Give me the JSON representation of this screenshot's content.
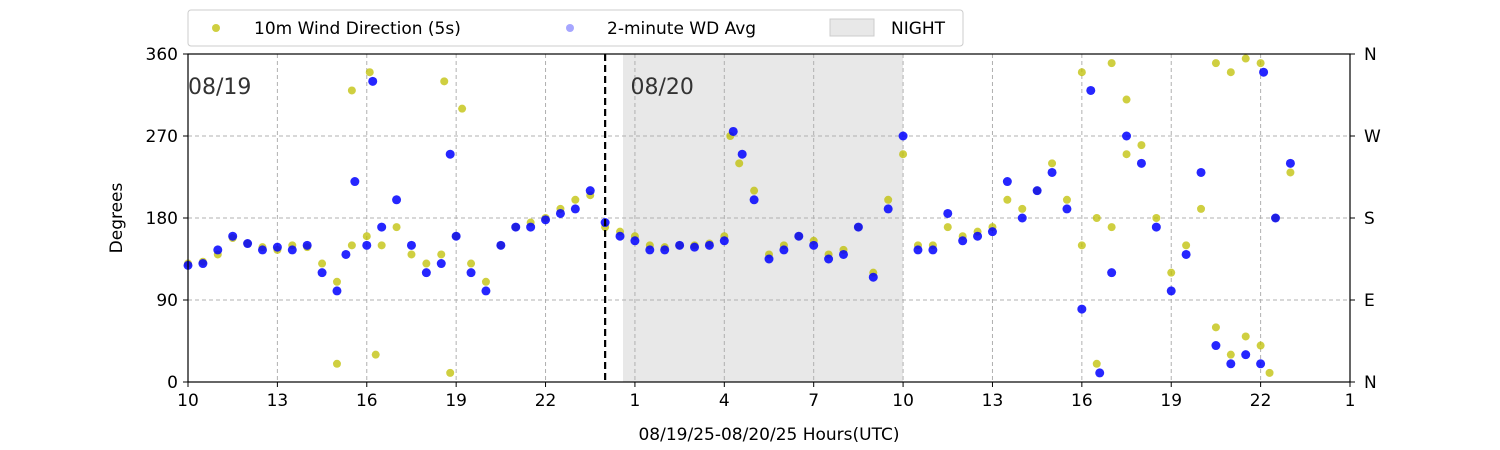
{
  "chart_data": {
    "type": "scatter",
    "xlabel": "08/19/25-08/20/25  Hours(UTC)",
    "ylabel": "Degrees",
    "xlim": [
      10,
      49
    ],
    "ylim": [
      0,
      360
    ],
    "x_ticks": [
      {
        "value": 10,
        "label": "10"
      },
      {
        "value": 13,
        "label": "13"
      },
      {
        "value": 16,
        "label": "16"
      },
      {
        "value": 19,
        "label": "19"
      },
      {
        "value": 22,
        "label": "22"
      },
      {
        "value": 25,
        "label": "1"
      },
      {
        "value": 28,
        "label": "4"
      },
      {
        "value": 31,
        "label": "7"
      },
      {
        "value": 34,
        "label": "10"
      },
      {
        "value": 37,
        "label": "13"
      },
      {
        "value": 40,
        "label": "16"
      },
      {
        "value": 43,
        "label": "19"
      },
      {
        "value": 46,
        "label": "22"
      },
      {
        "value": 49,
        "label": "1"
      }
    ],
    "y_ticks": [
      0,
      90,
      180,
      270,
      360
    ],
    "y2_ticks": [
      {
        "value": 0,
        "label": "N"
      },
      {
        "value": 90,
        "label": "E"
      },
      {
        "value": 180,
        "label": "S"
      },
      {
        "value": 270,
        "label": "W"
      },
      {
        "value": 360,
        "label": "N"
      }
    ],
    "grid": true,
    "legend_position": "top-left-outside",
    "legend": [
      {
        "label": "10m Wind Direction (5s)",
        "kind": "marker",
        "color": "#bfbf00"
      },
      {
        "label": "2-minute WD Avg",
        "kind": "marker",
        "color": "#0000ff"
      },
      {
        "label": "NIGHT",
        "kind": "patch",
        "color": "#e8e8e8"
      }
    ],
    "night_span": [
      24.6,
      34
    ],
    "day_divider_x": 24,
    "annotations": [
      {
        "text": "08/19",
        "x": 10,
        "y": 325
      },
      {
        "text": "08/20",
        "x": 24.85,
        "y": 325
      }
    ],
    "series": [
      {
        "name": "10m Wind Direction (5s)",
        "color": "#bfbf00",
        "points": [
          [
            10.0,
            130
          ],
          [
            10.5,
            132
          ],
          [
            11.0,
            140
          ],
          [
            11.5,
            158
          ],
          [
            12.0,
            152
          ],
          [
            12.5,
            148
          ],
          [
            13.0,
            145
          ],
          [
            13.5,
            150
          ],
          [
            14.0,
            148
          ],
          [
            14.5,
            130
          ],
          [
            15.0,
            110
          ],
          [
            15.5,
            150
          ],
          [
            16.0,
            160
          ],
          [
            16.5,
            150
          ],
          [
            17.0,
            170
          ],
          [
            17.5,
            140
          ],
          [
            18.0,
            130
          ],
          [
            18.5,
            140
          ],
          [
            19.0,
            160
          ],
          [
            19.5,
            130
          ],
          [
            20.0,
            110
          ],
          [
            20.5,
            150
          ],
          [
            21.0,
            170
          ],
          [
            21.5,
            175
          ],
          [
            22.0,
            180
          ],
          [
            22.5,
            190
          ],
          [
            23.0,
            200
          ],
          [
            23.5,
            205
          ],
          [
            24.0,
            170
          ],
          [
            24.5,
            165
          ],
          [
            25.0,
            160
          ],
          [
            25.5,
            150
          ],
          [
            26.0,
            148
          ],
          [
            26.5,
            150
          ],
          [
            27.0,
            150
          ],
          [
            27.5,
            152
          ],
          [
            28.0,
            160
          ],
          [
            28.2,
            270
          ],
          [
            28.5,
            240
          ],
          [
            29.0,
            210
          ],
          [
            29.5,
            140
          ],
          [
            30.0,
            150
          ],
          [
            30.5,
            160
          ],
          [
            31.0,
            155
          ],
          [
            31.5,
            140
          ],
          [
            32.0,
            145
          ],
          [
            32.5,
            170
          ],
          [
            33.0,
            120
          ],
          [
            33.5,
            200
          ],
          [
            34.0,
            250
          ],
          [
            34.5,
            150
          ],
          [
            35.0,
            150
          ],
          [
            35.5,
            170
          ],
          [
            36.0,
            160
          ],
          [
            36.5,
            165
          ],
          [
            37.0,
            170
          ],
          [
            37.5,
            200
          ],
          [
            38.0,
            190
          ],
          [
            38.5,
            210
          ],
          [
            39.0,
            240
          ],
          [
            39.5,
            200
          ],
          [
            40.0,
            150
          ],
          [
            40.5,
            180
          ],
          [
            41.0,
            170
          ],
          [
            41.5,
            250
          ],
          [
            42.0,
            260
          ],
          [
            42.5,
            180
          ],
          [
            43.0,
            120
          ],
          [
            43.5,
            150
          ],
          [
            44.0,
            190
          ],
          [
            44.5,
            60
          ],
          [
            45.0,
            30
          ],
          [
            45.5,
            50
          ],
          [
            46.0,
            40
          ],
          [
            46.5,
            180
          ],
          [
            47.0,
            230
          ],
          [
            15.0,
            20
          ],
          [
            15.5,
            320
          ],
          [
            16.1,
            340
          ],
          [
            16.3,
            30
          ],
          [
            18.6,
            330
          ],
          [
            18.8,
            10
          ],
          [
            19.2,
            300
          ],
          [
            40.0,
            340
          ],
          [
            40.5,
            20
          ],
          [
            41.0,
            350
          ],
          [
            41.5,
            310
          ],
          [
            44.5,
            350
          ],
          [
            45.0,
            340
          ],
          [
            45.5,
            355
          ],
          [
            46.0,
            350
          ],
          [
            46.3,
            10
          ]
        ]
      },
      {
        "name": "2-minute WD Avg",
        "color": "#0000ff",
        "points": [
          [
            10.0,
            128
          ],
          [
            10.5,
            130
          ],
          [
            11.0,
            145
          ],
          [
            11.5,
            160
          ],
          [
            12.0,
            152
          ],
          [
            12.5,
            145
          ],
          [
            13.0,
            148
          ],
          [
            13.5,
            145
          ],
          [
            14.0,
            150
          ],
          [
            14.5,
            120
          ],
          [
            15.0,
            100
          ],
          [
            15.3,
            140
          ],
          [
            15.6,
            220
          ],
          [
            16.0,
            150
          ],
          [
            16.2,
            330
          ],
          [
            16.5,
            170
          ],
          [
            17.0,
            200
          ],
          [
            17.5,
            150
          ],
          [
            18.0,
            120
          ],
          [
            18.5,
            130
          ],
          [
            18.8,
            250
          ],
          [
            19.0,
            160
          ],
          [
            19.5,
            120
          ],
          [
            20.0,
            100
          ],
          [
            20.5,
            150
          ],
          [
            21.0,
            170
          ],
          [
            21.5,
            170
          ],
          [
            22.0,
            178
          ],
          [
            22.5,
            185
          ],
          [
            23.0,
            190
          ],
          [
            23.5,
            210
          ],
          [
            24.0,
            175
          ],
          [
            24.5,
            160
          ],
          [
            25.0,
            155
          ],
          [
            25.5,
            145
          ],
          [
            26.0,
            145
          ],
          [
            26.5,
            150
          ],
          [
            27.0,
            148
          ],
          [
            27.5,
            150
          ],
          [
            28.0,
            155
          ],
          [
            28.3,
            275
          ],
          [
            28.6,
            250
          ],
          [
            29.0,
            200
          ],
          [
            29.5,
            135
          ],
          [
            30.0,
            145
          ],
          [
            30.5,
            160
          ],
          [
            31.0,
            150
          ],
          [
            31.5,
            135
          ],
          [
            32.0,
            140
          ],
          [
            32.5,
            170
          ],
          [
            33.0,
            115
          ],
          [
            33.5,
            190
          ],
          [
            34.0,
            270
          ],
          [
            34.5,
            145
          ],
          [
            35.0,
            145
          ],
          [
            35.5,
            185
          ],
          [
            36.0,
            155
          ],
          [
            36.5,
            160
          ],
          [
            37.0,
            165
          ],
          [
            37.5,
            220
          ],
          [
            38.0,
            180
          ],
          [
            38.5,
            210
          ],
          [
            39.0,
            230
          ],
          [
            39.5,
            190
          ],
          [
            40.0,
            80
          ],
          [
            40.3,
            320
          ],
          [
            40.6,
            10
          ],
          [
            41.0,
            120
          ],
          [
            41.5,
            270
          ],
          [
            42.0,
            240
          ],
          [
            42.5,
            170
          ],
          [
            43.0,
            100
          ],
          [
            43.5,
            140
          ],
          [
            44.0,
            230
          ],
          [
            44.5,
            40
          ],
          [
            45.0,
            20
          ],
          [
            45.5,
            30
          ],
          [
            46.0,
            20
          ],
          [
            46.1,
            340
          ],
          [
            46.5,
            180
          ],
          [
            47.0,
            240
          ]
        ]
      }
    ]
  }
}
